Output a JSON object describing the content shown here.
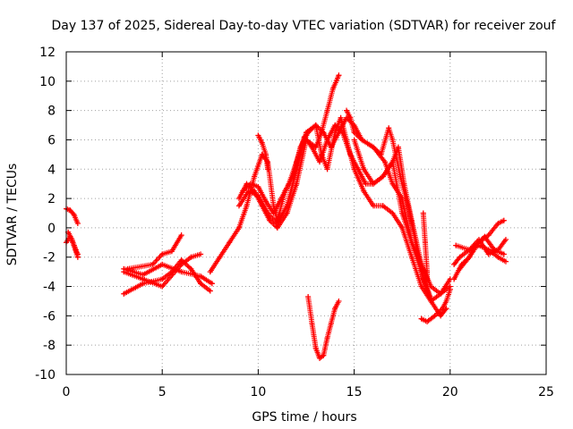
{
  "chart_data": {
    "type": "scatter",
    "title": "Day 137 of 2025, Sidereal Day-to-day VTEC variation (SDTVAR) for receiver zouf",
    "xlabel": "GPS time / hours",
    "ylabel": "SDTVAR / TECUs",
    "xlim": [
      0,
      25
    ],
    "ylim": [
      -10,
      12
    ],
    "xticks": [
      0,
      5,
      10,
      15,
      20,
      25
    ],
    "yticks": [
      -10,
      -8,
      -6,
      -4,
      -2,
      0,
      2,
      4,
      6,
      8,
      10,
      12
    ],
    "xtick_labels": [
      "0",
      "5",
      "10",
      "15",
      "20",
      "25"
    ],
    "ytick_labels": [
      "-10",
      "-8",
      "-6",
      "-4",
      "-2",
      "0",
      "2",
      "4",
      "6",
      "8",
      "10",
      "12"
    ],
    "grid": true,
    "legend": "none",
    "marker": "plus",
    "color": "#ff0000",
    "series": [
      {
        "values": [
          [
            0.0,
            1.3
          ],
          [
            0.2,
            1.2
          ],
          [
            0.4,
            0.9
          ],
          [
            0.6,
            0.3
          ]
        ]
      },
      {
        "values": [
          [
            0.0,
            -1.0
          ],
          [
            0.2,
            -0.6
          ],
          [
            0.4,
            -1.2
          ],
          [
            0.6,
            -2.0
          ]
        ]
      },
      {
        "values": [
          [
            0.1,
            -0.3
          ],
          [
            0.3,
            -0.8
          ],
          [
            0.5,
            -1.5
          ],
          [
            0.6,
            -1.8
          ]
        ]
      },
      {
        "values": [
          [
            3.0,
            -2.8
          ],
          [
            4.0,
            -3.2
          ],
          [
            5.0,
            -2.5
          ],
          [
            6.0,
            -3.0
          ],
          [
            7.0,
            -3.3
          ],
          [
            7.6,
            -3.8
          ]
        ]
      },
      {
        "values": [
          [
            3.0,
            -4.5
          ],
          [
            4.0,
            -3.8
          ],
          [
            5.0,
            -3.5
          ],
          [
            5.5,
            -3.0
          ],
          [
            6.0,
            -2.2
          ],
          [
            6.5,
            -2.8
          ],
          [
            7.0,
            -3.8
          ],
          [
            7.5,
            -4.3
          ]
        ]
      },
      {
        "values": [
          [
            3.0,
            -3.0
          ],
          [
            4.0,
            -3.5
          ],
          [
            5.0,
            -4.0
          ],
          [
            6.0,
            -2.5
          ],
          [
            6.5,
            -2.0
          ],
          [
            7.0,
            -1.8
          ]
        ]
      },
      {
        "values": [
          [
            3.2,
            -2.8
          ],
          [
            4.5,
            -2.5
          ],
          [
            5.0,
            -1.8
          ],
          [
            5.5,
            -1.6
          ],
          [
            6.0,
            -0.5
          ]
        ]
      },
      {
        "values": [
          [
            7.5,
            -3.0
          ],
          [
            8.0,
            -2.0
          ],
          [
            8.5,
            -1.0
          ],
          [
            9.0,
            0.0
          ],
          [
            9.4,
            1.5
          ],
          [
            9.8,
            3.5
          ],
          [
            10.2,
            5.0
          ],
          [
            10.5,
            4.5
          ],
          [
            10.8,
            1.5
          ],
          [
            11.0,
            0.5
          ],
          [
            11.4,
            2.5
          ],
          [
            11.8,
            3.5
          ],
          [
            12.2,
            5.5
          ],
          [
            12.6,
            6.5
          ],
          [
            13.0,
            7.0
          ],
          [
            13.4,
            6.5
          ],
          [
            13.8,
            5.5
          ],
          [
            14.2,
            6.5
          ],
          [
            14.6,
            7.5
          ],
          [
            15.0,
            7.0
          ],
          [
            15.4,
            6.0
          ],
          [
            16.0,
            5.5
          ],
          [
            16.6,
            4.5
          ],
          [
            17.0,
            3.0
          ],
          [
            17.5,
            2.0
          ],
          [
            18.0,
            -1.0
          ],
          [
            18.5,
            -3.0
          ],
          [
            19.0,
            -5.0
          ],
          [
            19.5,
            -6.0
          ],
          [
            19.8,
            -5.5
          ]
        ]
      },
      {
        "values": [
          [
            9.0,
            1.5
          ],
          [
            9.5,
            2.5
          ],
          [
            10.0,
            2.2
          ],
          [
            10.5,
            1.0
          ],
          [
            11.0,
            0.3
          ],
          [
            11.5,
            1.5
          ],
          [
            12.0,
            4.0
          ],
          [
            12.5,
            6.5
          ],
          [
            13.0,
            7.0
          ],
          [
            13.3,
            5.0
          ],
          [
            13.6,
            4.0
          ],
          [
            14.0,
            6.5
          ],
          [
            14.3,
            7.5
          ],
          [
            14.6,
            6.0
          ],
          [
            15.0,
            4.0
          ],
          [
            15.5,
            2.5
          ],
          [
            16.0,
            1.5
          ],
          [
            16.5,
            1.5
          ],
          [
            17.0,
            1.0
          ],
          [
            17.5,
            0.0
          ],
          [
            18.0,
            -2.0
          ],
          [
            18.5,
            -4.0
          ],
          [
            19.0,
            -5.0
          ],
          [
            19.5,
            -4.5
          ],
          [
            20.0,
            -4.0
          ]
        ]
      },
      {
        "values": [
          [
            9.2,
            2.5
          ],
          [
            9.6,
            3.0
          ],
          [
            10.0,
            2.8
          ],
          [
            10.4,
            1.8
          ],
          [
            10.8,
            1.0
          ],
          [
            11.2,
            2.0
          ],
          [
            11.6,
            3.0
          ],
          [
            12.0,
            4.5
          ],
          [
            12.4,
            6.2
          ],
          [
            12.8,
            5.5
          ],
          [
            13.2,
            4.5
          ],
          [
            13.6,
            6.0
          ],
          [
            14.0,
            7.0
          ],
          [
            14.4,
            6.5
          ],
          [
            14.8,
            5.0
          ],
          [
            15.2,
            4.0
          ],
          [
            15.6,
            3.0
          ],
          [
            16.0,
            3.0
          ],
          [
            16.5,
            3.5
          ],
          [
            17.0,
            4.5
          ],
          [
            17.5,
            1.0
          ],
          [
            18.0,
            -1.0
          ],
          [
            18.5,
            -2.5
          ],
          [
            19.0,
            -4.0
          ],
          [
            19.5,
            -4.5
          ],
          [
            20.0,
            -3.5
          ]
        ]
      },
      {
        "values": [
          [
            9.0,
            2.0
          ],
          [
            9.4,
            3.0
          ],
          [
            9.8,
            2.5
          ],
          [
            10.2,
            1.5
          ],
          [
            10.6,
            0.5
          ],
          [
            11.0,
            0.0
          ],
          [
            11.5,
            1.0
          ],
          [
            12.0,
            3.0
          ],
          [
            12.5,
            6.0
          ],
          [
            13.0,
            5.5
          ],
          [
            13.3,
            6.5
          ],
          [
            13.6,
            8.0
          ],
          [
            13.9,
            9.5
          ],
          [
            14.2,
            10.4
          ]
        ]
      },
      {
        "values": [
          [
            10.0,
            6.3
          ],
          [
            10.2,
            5.8
          ],
          [
            10.4,
            5.0
          ],
          [
            10.5,
            4.0
          ]
        ]
      },
      {
        "values": [
          [
            14.6,
            8.0
          ],
          [
            14.8,
            7.5
          ],
          [
            15.0,
            6.5
          ],
          [
            15.4,
            6.0
          ],
          [
            16.0,
            5.5
          ],
          [
            16.4,
            5.0
          ],
          [
            16.8,
            6.8
          ],
          [
            17.0,
            6.0
          ],
          [
            17.4,
            3.5
          ],
          [
            17.8,
            1.5
          ],
          [
            18.2,
            -1.0
          ],
          [
            18.6,
            -3.5
          ],
          [
            19.0,
            -4.8
          ]
        ]
      },
      {
        "values": [
          [
            15.0,
            6.0
          ],
          [
            15.5,
            4.0
          ],
          [
            16.0,
            3.0
          ],
          [
            16.5,
            3.5
          ],
          [
            17.0,
            4.5
          ],
          [
            17.3,
            5.5
          ],
          [
            17.6,
            3.0
          ],
          [
            18.0,
            0.5
          ],
          [
            18.5,
            -2.5
          ],
          [
            18.8,
            -3.5
          ]
        ]
      },
      {
        "values": [
          [
            12.6,
            -4.7
          ],
          [
            12.8,
            -6.5
          ],
          [
            13.0,
            -8.2
          ],
          [
            13.2,
            -8.9
          ],
          [
            13.4,
            -8.7
          ],
          [
            13.6,
            -7.5
          ],
          [
            13.8,
            -6.5
          ],
          [
            14.0,
            -5.5
          ],
          [
            14.2,
            -5.0
          ]
        ]
      },
      {
        "values": [
          [
            18.6,
            1.0
          ],
          [
            18.7,
            -1.0
          ],
          [
            18.8,
            -3.0
          ],
          [
            18.8,
            -4.0
          ]
        ]
      },
      {
        "values": [
          [
            18.5,
            -6.2
          ],
          [
            18.8,
            -6.4
          ],
          [
            19.2,
            -6.0
          ],
          [
            19.6,
            -5.5
          ],
          [
            19.8,
            -5.0
          ],
          [
            20.0,
            -4.2
          ]
        ]
      },
      {
        "values": [
          [
            20.2,
            -2.5
          ],
          [
            20.5,
            -2.0
          ],
          [
            21.0,
            -1.5
          ],
          [
            21.5,
            -1.2
          ],
          [
            22.0,
            -1.5
          ],
          [
            22.5,
            -2.0
          ],
          [
            22.9,
            -2.3
          ]
        ]
      },
      {
        "values": [
          [
            20.2,
            -3.5
          ],
          [
            20.6,
            -2.5
          ],
          [
            21.0,
            -2.0
          ],
          [
            21.5,
            -1.0
          ],
          [
            22.0,
            -0.5
          ],
          [
            22.5,
            0.3
          ],
          [
            22.8,
            0.5
          ]
        ]
      },
      {
        "values": [
          [
            20.3,
            -1.2
          ],
          [
            21.0,
            -1.5
          ],
          [
            21.5,
            -0.8
          ],
          [
            22.0,
            -1.8
          ],
          [
            22.5,
            -1.5
          ],
          [
            22.9,
            -0.8
          ]
        ]
      },
      {
        "values": [
          [
            20.5,
            -2.8
          ],
          [
            21.0,
            -2.0
          ],
          [
            21.3,
            -1.2
          ],
          [
            21.8,
            -0.6
          ],
          [
            22.3,
            -1.5
          ],
          [
            22.8,
            -1.8
          ]
        ]
      }
    ]
  }
}
